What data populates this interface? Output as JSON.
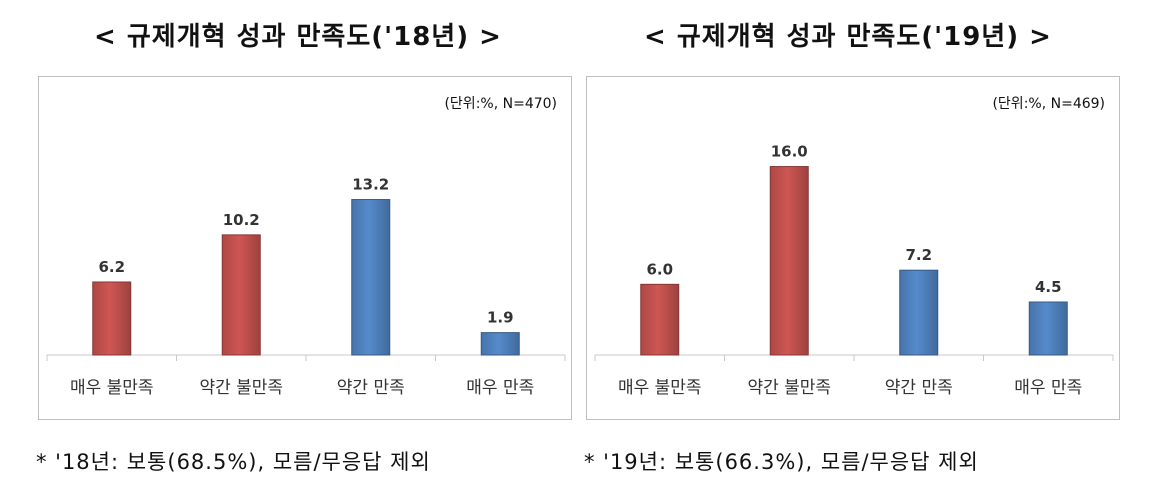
{
  "chart_data": [
    {
      "type": "bar",
      "title": "< 규제개혁 성과 만족도('18년) >",
      "unit_note": "(단위:%, N=470)",
      "categories": [
        "매우 불만족",
        "약간 불만족",
        "약간 만족",
        "매우 만족"
      ],
      "values": [
        6.2,
        10.2,
        13.2,
        1.9
      ],
      "value_labels": [
        "6.2",
        "10.2",
        "13.2",
        "1.9"
      ],
      "colors": [
        "#c0504d",
        "#c0504d",
        "#4f81bd",
        "#4f81bd"
      ],
      "ylim": [
        0,
        18
      ],
      "grid": false,
      "footnote": "* '18년: 보통(68.5%), 모름/무응답 제외"
    },
    {
      "type": "bar",
      "title": "< 규제개혁 성과 만족도('19년) >",
      "unit_note": "(단위:%, N=469)",
      "categories": [
        "매우 불만족",
        "약간 불만족",
        "약간 만족",
        "매우 만족"
      ],
      "values": [
        6.0,
        16.0,
        7.2,
        4.5
      ],
      "value_labels": [
        "6.0",
        "16.0",
        "7.2",
        "4.5"
      ],
      "colors": [
        "#c0504d",
        "#c0504d",
        "#4f81bd",
        "#4f81bd"
      ],
      "ylim": [
        0,
        18
      ],
      "grid": false,
      "footnote": "* '19년: 보통(66.3%), 모름/무응답 제외"
    }
  ]
}
